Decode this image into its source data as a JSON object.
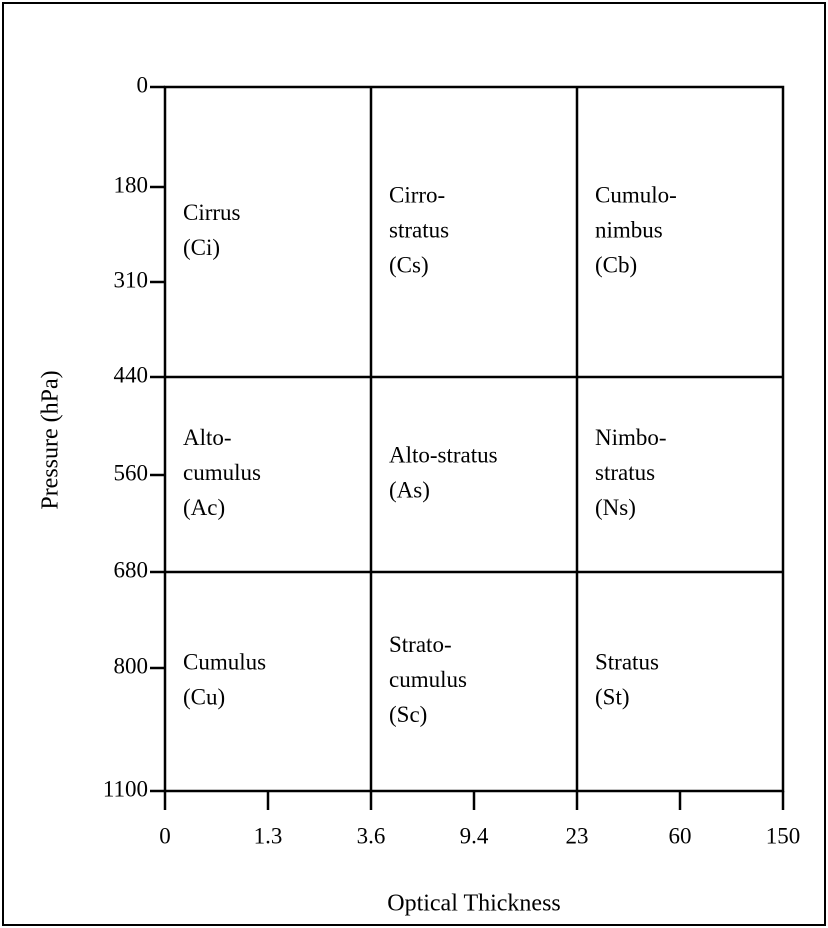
{
  "y_axis": {
    "label": "Pressure (hPa)",
    "ticks": [
      "0",
      "180",
      "310",
      "440",
      "560",
      "680",
      "800",
      "1100"
    ]
  },
  "x_axis": {
    "label": "Optical Thickness",
    "ticks": [
      "0",
      "1.3",
      "3.6",
      "9.4",
      "23",
      "60",
      "150"
    ]
  },
  "cells": [
    [
      [
        "Cirrus",
        "(Ci)"
      ],
      [
        "Cirro-",
        "stratus",
        "(Cs)"
      ],
      [
        "Cumulo-",
        "nimbus",
        "(Cb)"
      ]
    ],
    [
      [
        "Alto-",
        "cumulus",
        "(Ac)"
      ],
      [
        "Alto-stratus",
        "(As)"
      ],
      [
        "Nimbo-",
        "stratus",
        "(Ns)"
      ]
    ],
    [
      [
        "Cumulus",
        "(Cu)"
      ],
      [
        "Strato-",
        "cumulus",
        "(Sc)"
      ],
      [
        "Stratus",
        "(St)"
      ]
    ]
  ]
}
